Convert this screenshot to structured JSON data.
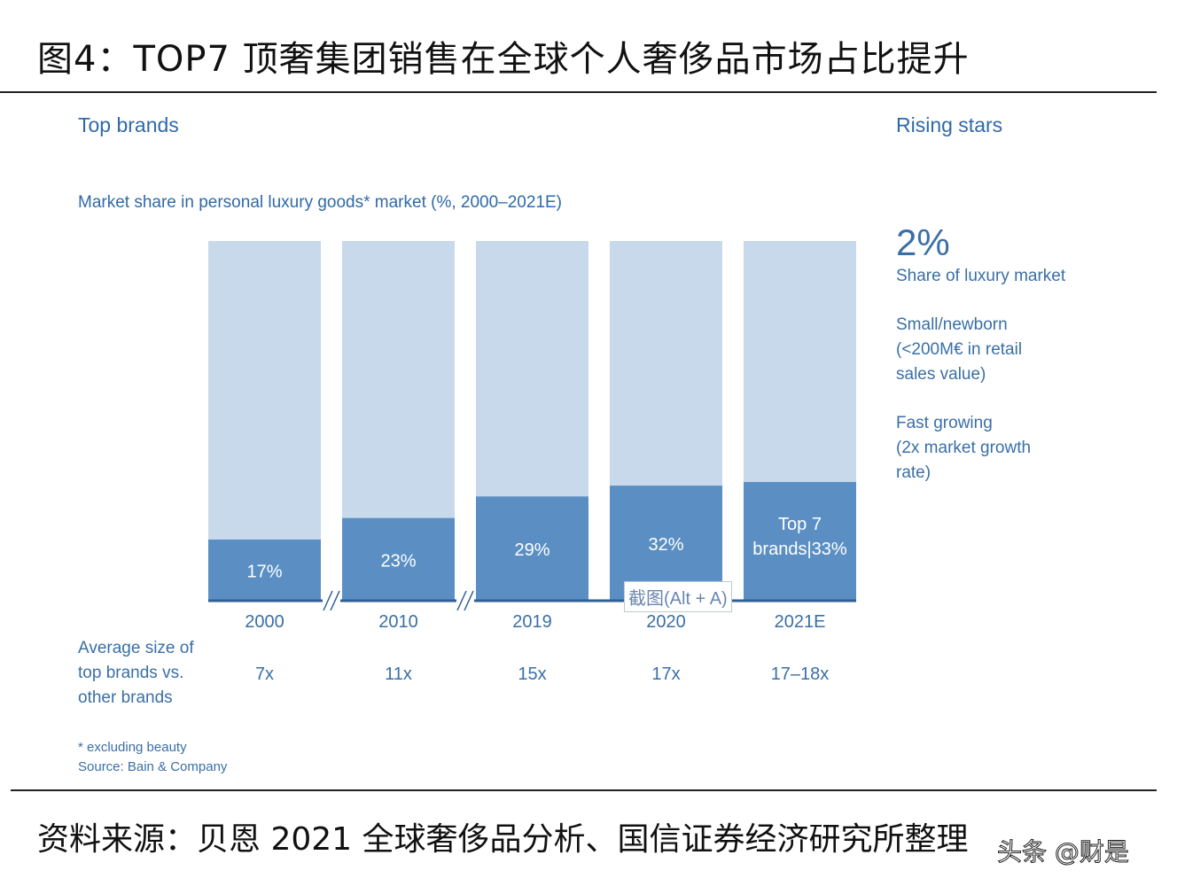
{
  "title": "图4：TOP7 顶奢集团销售在全球个人奢侈品市场占比提升",
  "footer": "资料来源：贝恩 2021 全球奢侈品分析、国信证券经济研究所整理",
  "watermark": "头条 @财是",
  "tooltip": "截图(Alt + A)",
  "left_header": "Top brands",
  "right_header": "Rising stars",
  "right_panel": {
    "big_value": "2%",
    "big_label": "Share of luxury market",
    "point1": [
      "Small/newborn",
      "(<200M€ in retail",
      "sales value)"
    ],
    "point2": [
      "Fast growing",
      "(2x market growth",
      "rate)"
    ]
  },
  "avg_label": [
    "Average size of",
    "top brands vs.",
    "other brands"
  ],
  "notes": [
    "* excluding beauty",
    "Source: Bain & Company"
  ],
  "colors": {
    "top7": "#5b8fc4",
    "rest": "#c9d9ec",
    "text": "#3a6fa6"
  },
  "chart_data": {
    "type": "bar",
    "stacked": true,
    "title": "Market share in personal luxury goods* market (%, 2000–2021E)",
    "categories": [
      "2000",
      "2010",
      "2019",
      "2020",
      "2021E"
    ],
    "series": [
      {
        "name": "Top 7 brands",
        "values": [
          17,
          23,
          29,
          32,
          33
        ]
      }
    ],
    "data_labels": [
      "17%",
      "23%",
      "29%",
      "32%",
      "Top 7 brands|33%"
    ],
    "ylim": [
      0,
      100
    ],
    "axis_breaks_after": [
      "2000",
      "2010"
    ],
    "avg_size": [
      "7x",
      "11x",
      "15x",
      "17x",
      "17–18x"
    ]
  }
}
